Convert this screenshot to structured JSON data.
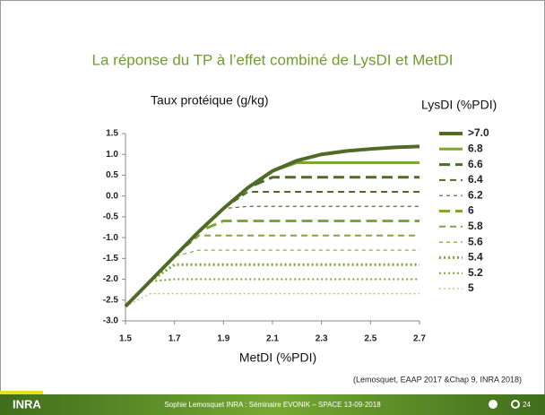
{
  "slide": {
    "title": "La réponse  du TP à l’effet combiné de LysDI et MetDI",
    "source": "(Lemosquet, EAAP 2017 &Chap 9, INRA 2018)",
    "footer": "Sophie Lemosquet INRA : Séminaire EVONIK – SPACE 13-09-2018",
    "page": "24",
    "logo": "INRA"
  },
  "chart_data": {
    "type": "line",
    "ylabel": "Taux protéique (g/kg)",
    "xlabel": "MetDI (%PDI)",
    "legend_title": "LysDI (%PDI)",
    "legend": "right",
    "x": [
      1.5,
      1.6,
      1.7,
      1.8,
      1.9,
      2.0,
      2.1,
      2.2,
      2.3,
      2.4,
      2.5,
      2.6,
      2.7
    ],
    "xlim": [
      1.5,
      2.7
    ],
    "xticks": [
      1.5,
      1.7,
      1.9,
      2.1,
      2.3,
      2.5,
      2.7
    ],
    "ylim": [
      -3.0,
      1.5
    ],
    "yticks": [
      1.5,
      {
        "value": 1.0,
        "label": "1.0"
      },
      0.5,
      {
        "value": 0.0,
        "label": "0.0"
      },
      -0.5,
      {
        "value": -1.0,
        "label": "-1.0"
      },
      -1.5,
      {
        "value": -2.0,
        "label": "-2.0"
      },
      -2.5,
      {
        "value": -3.0,
        "label": "-3.0"
      }
    ],
    "series": [
      {
        "name": ">7.0",
        "color": "#4f6b26",
        "dash": "solid",
        "width": 4,
        "values": [
          -2.65,
          -2.05,
          -1.45,
          -0.85,
          -0.3,
          0.2,
          0.6,
          0.85,
          1.0,
          1.08,
          1.13,
          1.17,
          1.19
        ]
      },
      {
        "name": "6.8",
        "color": "#7aa832",
        "dash": "solid",
        "width": 3,
        "values": [
          -2.65,
          -2.05,
          -1.45,
          -0.85,
          -0.3,
          0.2,
          0.6,
          0.8,
          0.8,
          0.8,
          0.8,
          0.8,
          0.8
        ]
      },
      {
        "name": "6.6",
        "color": "#4f6b26",
        "dash": "long",
        "width": 3,
        "values": [
          -2.65,
          -2.05,
          -1.45,
          -0.85,
          -0.3,
          0.2,
          0.45,
          0.45,
          0.45,
          0.45,
          0.45,
          0.45,
          0.45
        ]
      },
      {
        "name": "6.4",
        "color": "#4f6b26",
        "dash": "medium",
        "width": 2,
        "values": [
          -2.65,
          -2.05,
          -1.45,
          -0.85,
          -0.3,
          0.1,
          0.1,
          0.1,
          0.1,
          0.1,
          0.1,
          0.1,
          0.1
        ]
      },
      {
        "name": "6.2",
        "color": "#4f6b26",
        "dash": "short",
        "width": 1.2,
        "values": [
          -2.65,
          -2.05,
          -1.45,
          -0.85,
          -0.3,
          -0.25,
          -0.25,
          -0.25,
          -0.25,
          -0.25,
          -0.25,
          -0.25,
          -0.25
        ]
      },
      {
        "name": "6",
        "color": "#7aa832",
        "dash": "long",
        "width": 3,
        "values": [
          -2.65,
          -2.05,
          -1.45,
          -0.85,
          -0.6,
          -0.6,
          -0.6,
          -0.6,
          -0.6,
          -0.6,
          -0.6,
          -0.6,
          -0.6
        ]
      },
      {
        "name": "5.8",
        "color": "#7aa832",
        "dash": "medium",
        "width": 2,
        "values": [
          -2.65,
          -2.05,
          -1.45,
          -0.95,
          -0.95,
          -0.95,
          -0.95,
          -0.95,
          -0.95,
          -0.95,
          -0.95,
          -0.95,
          -0.95
        ]
      },
      {
        "name": "5.6",
        "color": "#7aa832",
        "dash": "short",
        "width": 1.2,
        "values": [
          -2.65,
          -2.05,
          -1.45,
          -1.3,
          -1.3,
          -1.3,
          -1.3,
          -1.3,
          -1.3,
          -1.3,
          -1.3,
          -1.3,
          -1.3
        ]
      },
      {
        "name": "5.4",
        "color": "#7aa832",
        "dash": "dot",
        "width": 3,
        "values": [
          -2.65,
          -2.05,
          -1.65,
          -1.65,
          -1.65,
          -1.65,
          -1.65,
          -1.65,
          -1.65,
          -1.65,
          -1.65,
          -1.65,
          -1.65
        ]
      },
      {
        "name": "5.2",
        "color": "#7aa832",
        "dash": "dot",
        "width": 2,
        "values": [
          -2.65,
          -2.05,
          -2.0,
          -2.0,
          -2.0,
          -2.0,
          -2.0,
          -2.0,
          -2.0,
          -2.0,
          -2.0,
          -2.0,
          -2.0
        ]
      },
      {
        "name": "5",
        "color": "#8fb84a",
        "dash": "dot",
        "width": 1,
        "values": [
          -2.65,
          -2.35,
          -2.35,
          -2.35,
          -2.35,
          -2.35,
          -2.35,
          -2.35,
          -2.35,
          -2.35,
          -2.35,
          -2.35,
          -2.35
        ]
      }
    ]
  }
}
